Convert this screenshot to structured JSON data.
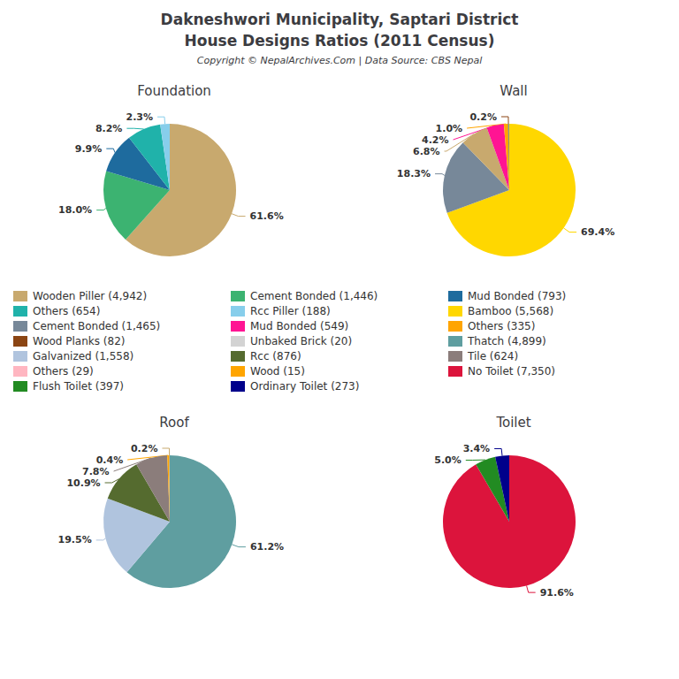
{
  "title": "Dakneshwori Municipality, Saptari District",
  "subtitle": "House Designs Ratios (2011 Census)",
  "annotations": [
    "Copyright © NepalArchives.Com | Data Source: CBS Nepal"
  ],
  "chart_data": [
    {
      "type": "pie",
      "title": "Foundation",
      "values": [
        61.6,
        18.0,
        9.9,
        8.2,
        2.3
      ],
      "colors": [
        "#C8A96E",
        "#3CB371",
        "#1E6B9E",
        "#20B2AA",
        "#87CEEB"
      ],
      "data_labels": true,
      "value_labels": [
        "61.6%",
        "18.0%",
        "9.9%",
        "8.2%",
        "2.3%"
      ]
    },
    {
      "type": "pie",
      "title": "Wall",
      "values": [
        69.4,
        18.3,
        6.8,
        4.2,
        1.0,
        0.2,
        0.1
      ],
      "colors": [
        "#FFD700",
        "#778899",
        "#C8A96E",
        "#FF1493",
        "#FFA500",
        "#8B4513",
        "#20B2AA"
      ],
      "data_labels": true,
      "value_labels": [
        "69.4%",
        "18.3%",
        "6.8%",
        "4.2%",
        "1.0%",
        "0.2%",
        null
      ]
    },
    {
      "type": "pie",
      "title": "Roof",
      "values": [
        61.2,
        19.5,
        10.9,
        7.8,
        0.4,
        0.2
      ],
      "colors": [
        "#5F9EA0",
        "#B0C4DE",
        "#556B2F",
        "#8B7D7B",
        "#FFA500",
        "#C8A96E"
      ],
      "data_labels": true,
      "value_labels": [
        "61.2%",
        "19.5%",
        "10.9%",
        "7.8%",
        "0.4%",
        "0.2%"
      ]
    },
    {
      "type": "pie",
      "title": "Toilet",
      "values": [
        91.6,
        5.0,
        3.4
      ],
      "colors": [
        "#DC143C",
        "#228B22",
        "#00008B"
      ],
      "data_labels": true,
      "value_labels": [
        "91.6%",
        "5.0%",
        "3.4%"
      ]
    },
    {
      "type": "legend",
      "series": [
        {
          "name": "Wooden Piller (4,942)",
          "color": "#C8A96E"
        },
        {
          "name": "Others (654)",
          "color": "#20B2AA"
        },
        {
          "name": "Cement Bonded (1,465)",
          "color": "#778899"
        },
        {
          "name": "Wood Planks (82)",
          "color": "#8B4513"
        },
        {
          "name": "Galvanized (1,558)",
          "color": "#B0C4DE"
        },
        {
          "name": "Others (29)",
          "color": "#FFB6C1"
        },
        {
          "name": "Flush Toilet (397)",
          "color": "#228B22"
        },
        {
          "name": "Cement Bonded (1,446)",
          "color": "#3CB371"
        },
        {
          "name": "Rcc Piller (188)",
          "color": "#87CEEB"
        },
        {
          "name": "Mud Bonded (549)",
          "color": "#FF1493"
        },
        {
          "name": "Unbaked Brick (20)",
          "color": "#D3D3D3"
        },
        {
          "name": "Rcc (876)",
          "color": "#556B2F"
        },
        {
          "name": "Wood (15)",
          "color": "#FFA500"
        },
        {
          "name": "Ordinary Toilet (273)",
          "color": "#00008B"
        },
        {
          "name": "Mud Bonded (793)",
          "color": "#1E6B9E"
        },
        {
          "name": "Bamboo (5,568)",
          "color": "#FFD700"
        },
        {
          "name": "Others (335)",
          "color": "#FFA500"
        },
        {
          "name": "Thatch (4,899)",
          "color": "#5F9EA0"
        },
        {
          "name": "Tile (624)",
          "color": "#8B7D7B"
        },
        {
          "name": "No Toilet (7,350)",
          "color": "#DC143C"
        }
      ]
    }
  ]
}
